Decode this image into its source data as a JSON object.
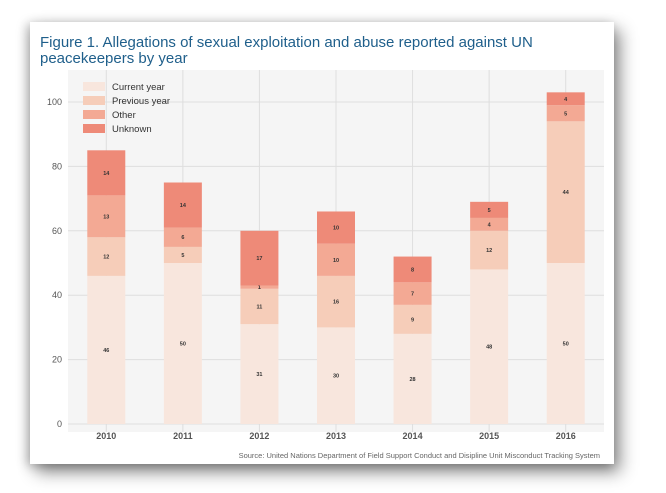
{
  "title": "Figure 1. Allegations of sexual exploitation and abuse reported against UN peacekeepers by year",
  "source": "Source: United Nations Department of Field Support Conduct and Disipline Unit Misconduct Tracking System",
  "chart_data": {
    "type": "bar",
    "stacked": true,
    "categories": [
      "2010",
      "2011",
      "2012",
      "2013",
      "2014",
      "2015",
      "2016"
    ],
    "series": [
      {
        "name": "Current year",
        "color": "#f8e6dd",
        "values": [
          46,
          50,
          31,
          30,
          28,
          48,
          50
        ]
      },
      {
        "name": "Previous year",
        "color": "#f6cdb9",
        "values": [
          12,
          5,
          11,
          16,
          9,
          12,
          44
        ]
      },
      {
        "name": "Other",
        "color": "#f3a994",
        "values": [
          13,
          6,
          1,
          10,
          7,
          4,
          5
        ]
      },
      {
        "name": "Unknown",
        "color": "#ee8a78",
        "values": [
          14,
          14,
          17,
          10,
          8,
          5,
          4
        ]
      }
    ],
    "yticks": [
      0,
      20,
      40,
      60,
      80,
      100
    ],
    "ylim": [
      0,
      105
    ],
    "grid": true,
    "legend": "top-left",
    "plot_background": "#f5f5f5"
  }
}
